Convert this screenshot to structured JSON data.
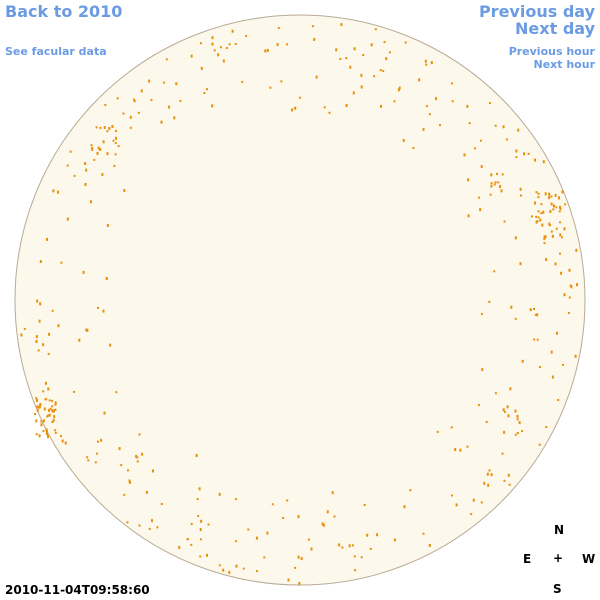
{
  "nav": {
    "back": "Back to 2010",
    "facular": "See facular data",
    "previous_day": "Previous day",
    "next_day": "Next day",
    "previous_hour": "Previous hour",
    "next_hour": "Next hour"
  },
  "timestamp": "2010-11-04T09:58:60",
  "compass": {
    "north": "N",
    "east": "E",
    "center": "+",
    "west": "W",
    "south": "S"
  }
}
